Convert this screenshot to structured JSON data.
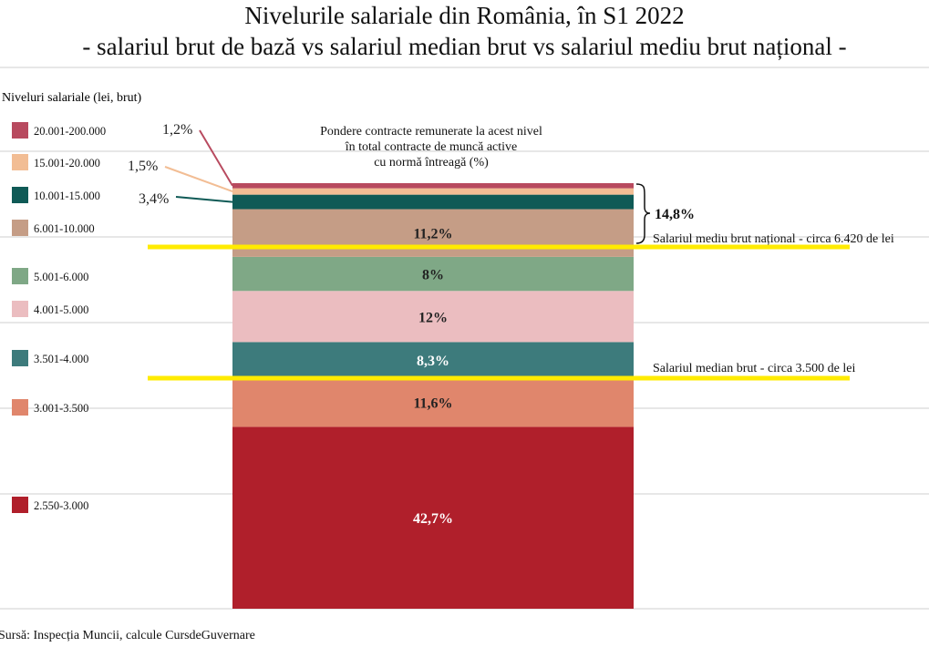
{
  "header": {
    "title": "Nivelurile salariale din România, în S1 2022",
    "subtitle": "- salariul brut de bază vs salariul median brut vs salariul mediu brut național -"
  },
  "source": "Sursă: Inspecția Muncii, calcule CursdeGuvernare",
  "chart_data": {
    "type": "bar",
    "stacked": true,
    "legend_title": "Niveluri salariale (lei, brut)",
    "bar_caption": [
      "Pondere contracte remunerate la acest nivel",
      "în total contracte de muncă active",
      "cu normă întreagă (%)"
    ],
    "categories": [
      "2.550-3.000",
      "3.001-3.500",
      "3.501-4.000",
      "4.001-5.000",
      "5.001-6.000",
      "6.001-10.000",
      "10.001-15.000",
      "15.001-20.000",
      "20.001-200.000"
    ],
    "values": [
      42.7,
      11.6,
      8.3,
      12,
      8,
      11.2,
      3.4,
      1.5,
      1.2
    ],
    "value_labels": [
      "42,7%",
      "11,6%",
      "8,3%",
      "12%",
      "8%",
      "11,2%",
      "3,4%",
      "1,5%",
      "1,2%"
    ],
    "colors": [
      "#b01f2b",
      "#e0866c",
      "#3d7b7c",
      "#ebbdc0",
      "#7fa886",
      "#c59d86",
      "#0f5a56",
      "#f2bd94",
      "#b84a5f"
    ],
    "bracket_label": "14,8%",
    "annotations": [
      {
        "label": "Salariul mediu brut național - circa 6.420 de lei",
        "value": 6420,
        "color": "#ffeb00"
      },
      {
        "label": "Salariul median brut - circa 3.500 de lei",
        "value": 3500,
        "color": "#ffeb00"
      }
    ],
    "ylim": [
      0,
      100
    ],
    "grid": true
  }
}
